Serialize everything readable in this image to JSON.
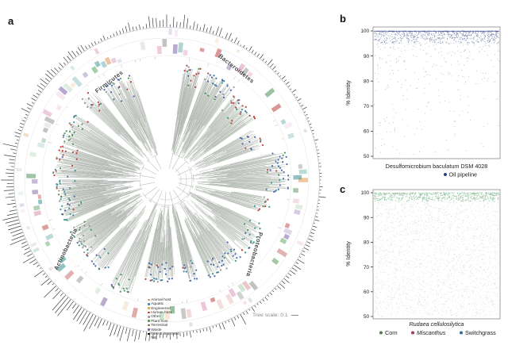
{
  "panels": {
    "a": {
      "letter": "a"
    },
    "b": {
      "letter": "b"
    },
    "c": {
      "letter": "c"
    }
  },
  "chart_data": [
    {
      "id": "a",
      "type": "tree",
      "layout": "circular-phylogram",
      "phyla": [
        "Firmicutes",
        "Bacteroidetes",
        "Proteobacteria",
        "Actinobacteria"
      ],
      "tree_scale_label": "Tree scale: 0.1",
      "tree_scale_value": 0.1,
      "legend": [
        {
          "label": "Animal host",
          "color": "#c49a6c",
          "marker": "circle"
        },
        {
          "label": "Aquatic",
          "color": "#4a7fb5",
          "marker": "circle"
        },
        {
          "label": "Engineered",
          "color": "#d9a441",
          "marker": "circle"
        },
        {
          "label": "Human host",
          "color": "#c03a2b",
          "marker": "circle"
        },
        {
          "label": "Other",
          "color": "#9b9b9b",
          "marker": "circle"
        },
        {
          "label": "Plant host",
          "color": "#4e9a51",
          "marker": "circle"
        },
        {
          "label": "Terrestrial",
          "color": "#8b5e3c",
          "marker": "circle"
        },
        {
          "label": "Waste",
          "color": "#7d5ba6",
          "marker": "circle"
        },
        {
          "label": "New & improved hits",
          "color": "#111111",
          "marker": "square"
        }
      ],
      "rings": [
        "inner: colored isolation-source strips",
        "outer: black radial bar chart"
      ],
      "tip_marker_colors": [
        "#b5342f",
        "#2e8b8b",
        "#3e8e4e",
        "#3a5fa0",
        "#8a8f8a"
      ]
    },
    {
      "id": "b",
      "type": "scatter",
      "xlabel": "Desulfomicrobium baculatum DSM 4028",
      "ylabel": "% Identity",
      "ylim": [
        50,
        100
      ],
      "yticks": [
        100,
        90,
        80,
        70,
        60,
        50
      ],
      "grid": false,
      "legend_position": "bottom-right",
      "legend": [
        {
          "label": "Oil pipeline",
          "color": "#2b3f7e"
        }
      ],
      "distribution": {
        "top_line_y": 100,
        "dense_band": {
          "y_range": [
            95,
            100
          ],
          "n": 640
        },
        "sparse_tail": {
          "y_range": [
            50,
            95
          ],
          "n": 300,
          "note": "density decreases toward 50"
        }
      }
    },
    {
      "id": "c",
      "type": "scatter",
      "xlabel": "Rudaea cellulosilytica",
      "xlabel_style": "italic",
      "ylabel": "% Identity",
      "ylim": [
        50,
        100
      ],
      "yticks": [
        100,
        90,
        80,
        70,
        60,
        50
      ],
      "grid": false,
      "legend_position": "bottom",
      "legend": [
        {
          "label": "Corn",
          "color": "#4f7d4f",
          "style": "normal"
        },
        {
          "label": "Miscanthus",
          "color": "#9e3a5d",
          "style": "italic"
        },
        {
          "label": "Switchgrass",
          "color": "#31708f",
          "style": "normal"
        }
      ],
      "distribution": {
        "dense_band": {
          "y_range": [
            96.5,
            100
          ],
          "n": 620,
          "color": "#4f9b5e"
        },
        "uniform_body": {
          "y_range": [
            50,
            96.5
          ],
          "n": 2400,
          "note": "dense uniform mixed-color scatter",
          "colors": [
            "#97a697",
            "#c09aa6",
            "#8fa9b5",
            "#9db89b"
          ]
        }
      }
    }
  ]
}
